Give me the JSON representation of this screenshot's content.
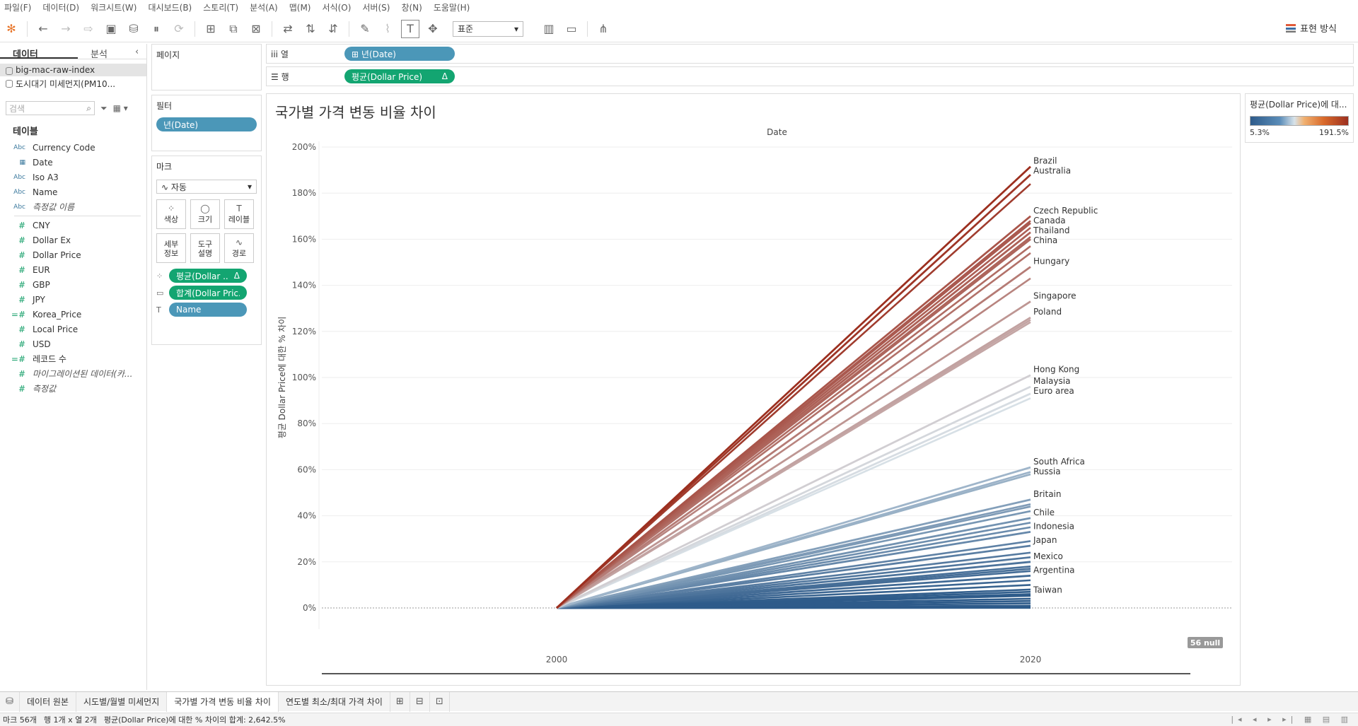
{
  "menu": [
    "파일(F)",
    "데이터(D)",
    "워크시트(W)",
    "대시보드(B)",
    "스토리(T)",
    "분석(A)",
    "맵(M)",
    "서식(O)",
    "서버(S)",
    "창(N)",
    "도움말(H)"
  ],
  "toolbar": {
    "fit_select": "표준",
    "show_me_label": "표현 방식"
  },
  "left_pane": {
    "tab_data": "데이터",
    "tab_analysis": "분석",
    "collapse": "‹",
    "datasources": [
      "big-mac-raw-index",
      "도시대기 미세먼지(PM10..."
    ],
    "search_placeholder": "검색",
    "tables_title": "테이블",
    "fields": [
      {
        "type": "Abc",
        "name": "Currency Code",
        "italic": false,
        "kind": "dim"
      },
      {
        "type": "▦",
        "name": "Date",
        "italic": false,
        "kind": "dim"
      },
      {
        "type": "Abc",
        "name": "Iso A3",
        "italic": false,
        "kind": "dim"
      },
      {
        "type": "Abc",
        "name": "Name",
        "italic": false,
        "kind": "dim"
      },
      {
        "type": "Abc",
        "name": "측정값 이름",
        "italic": true,
        "kind": "dim"
      },
      {
        "type": "#",
        "name": "CNY",
        "italic": false,
        "kind": "mea"
      },
      {
        "type": "#",
        "name": "Dollar Ex",
        "italic": false,
        "kind": "mea"
      },
      {
        "type": "#",
        "name": "Dollar Price",
        "italic": false,
        "kind": "mea"
      },
      {
        "type": "#",
        "name": "EUR",
        "italic": false,
        "kind": "mea"
      },
      {
        "type": "#",
        "name": "GBP",
        "italic": false,
        "kind": "mea"
      },
      {
        "type": "#",
        "name": "JPY",
        "italic": false,
        "kind": "mea"
      },
      {
        "type": "=#",
        "name": "Korea_Price",
        "italic": false,
        "kind": "mea"
      },
      {
        "type": "#",
        "name": "Local Price",
        "italic": false,
        "kind": "mea"
      },
      {
        "type": "#",
        "name": "USD",
        "italic": false,
        "kind": "mea"
      },
      {
        "type": "=#",
        "name": "레코드 수",
        "italic": false,
        "kind": "mea"
      },
      {
        "type": "#",
        "name": "마이그레이션된 데이터(카...",
        "italic": true,
        "kind": "mea"
      },
      {
        "type": "#",
        "name": "측정값",
        "italic": true,
        "kind": "mea"
      }
    ]
  },
  "cards": {
    "pages_title": "페이지",
    "filters_title": "필터",
    "filter_pill": "년(Date)",
    "marks_title": "마크",
    "mark_type": "자동",
    "mark_buttons": [
      {
        "glyph": "⁘",
        "label": "색상"
      },
      {
        "glyph": "◯",
        "label": "크기"
      },
      {
        "glyph": "T",
        "label": "레이블"
      },
      {
        "glyph": "",
        "label": "세부\n정보"
      },
      {
        "glyph": "",
        "label": "도구\n설명"
      },
      {
        "glyph": "∿",
        "label": "경로"
      }
    ],
    "mark_pills": [
      {
        "icon": "⁘",
        "label": "평균(Dollar ..",
        "delta": "Δ",
        "color": "green"
      },
      {
        "icon": "▭",
        "label": "합계(Dollar Pric..",
        "delta": "",
        "color": "green"
      },
      {
        "icon": "T",
        "label": "Name",
        "delta": "",
        "color": "blue"
      }
    ]
  },
  "shelves": {
    "columns_label": "iii  열",
    "columns_pill": "⊞  년(Date)",
    "rows_label": "☰  행",
    "rows_pill": "평균(Dollar Price)",
    "rows_delta": "Δ"
  },
  "legend": {
    "title": "평균(Dollar Price)에 대...",
    "min": "5.3%",
    "max": "191.5%"
  },
  "null_badge": "56 null",
  "sheet_tabs": [
    {
      "label": "데이터 원본",
      "active": false
    },
    {
      "label": "시도별/월별 미세먼지",
      "active": false
    },
    {
      "label": "국가별 가격 변동 비율 차이",
      "active": true
    },
    {
      "label": "연도별 최소/최대 가격 차이",
      "active": false
    }
  ],
  "status": {
    "marks": "마크 56개",
    "rows_cols": "행 1개 x 열 2개",
    "sum": "평균(Dollar Price)에 대한 % 차이의 합계: 2,642.5%"
  },
  "chart_data": {
    "type": "line",
    "title": "국가별 가격 변동 비율 차이",
    "xlabel": "Date",
    "ylabel": "평균 Dollar Price에 대한 % 차이",
    "x": [
      "2000",
      "2020"
    ],
    "ylim": [
      0,
      200
    ],
    "yticks": [
      "0%",
      "20%",
      "40%",
      "60%",
      "80%",
      "100%",
      "120%",
      "140%",
      "160%",
      "180%",
      "200%"
    ],
    "grid": true,
    "color_scale": {
      "min": 5.3,
      "max": 191.5,
      "low": "#2e5b8a",
      "mid": "#d8e3ea",
      "high": "#9c2f1f"
    },
    "series": [
      {
        "name": "Brazil",
        "values": [
          0,
          191.5
        ]
      },
      {
        "name": "Australia",
        "values": [
          0,
          188
        ]
      },
      {
        "name": "Czech Republic",
        "values": [
          0,
          170
        ]
      },
      {
        "name": "Canada",
        "values": [
          0,
          167
        ]
      },
      {
        "name": "Thailand",
        "values": [
          0,
          163
        ]
      },
      {
        "name": "China",
        "values": [
          0,
          160
        ]
      },
      {
        "name": "Hungary",
        "values": [
          0,
          148
        ]
      },
      {
        "name": "Singapore",
        "values": [
          0,
          133
        ]
      },
      {
        "name": "Poland",
        "values": [
          0,
          126
        ]
      },
      {
        "name": "Hong Kong",
        "values": [
          0,
          101
        ]
      },
      {
        "name": "Malaysia",
        "values": [
          0,
          96
        ]
      },
      {
        "name": "Euro area",
        "values": [
          0,
          93
        ]
      },
      {
        "name": "South Africa",
        "values": [
          0,
          61
        ]
      },
      {
        "name": "Russia",
        "values": [
          0,
          58
        ]
      },
      {
        "name": "Britain",
        "values": [
          0,
          47
        ]
      },
      {
        "name": "Chile",
        "values": [
          0,
          39
        ]
      },
      {
        "name": "Indonesia",
        "values": [
          0,
          33
        ]
      },
      {
        "name": "Japan",
        "values": [
          0,
          27
        ]
      },
      {
        "name": "Mexico",
        "values": [
          0,
          20
        ]
      },
      {
        "name": "Argentina",
        "values": [
          0,
          14
        ]
      },
      {
        "name": "Taiwan",
        "values": [
          0,
          5.3
        ]
      }
    ],
    "unlabeled_values": [
      184,
      168,
      165,
      161,
      157,
      154,
      143,
      125,
      124,
      91,
      59,
      45,
      44,
      42,
      37,
      35,
      29,
      24,
      22,
      18,
      17,
      16,
      12,
      10,
      8,
      7,
      6,
      4,
      3,
      2,
      1,
      0.5,
      0.2,
      0.1,
      0.05
    ]
  }
}
